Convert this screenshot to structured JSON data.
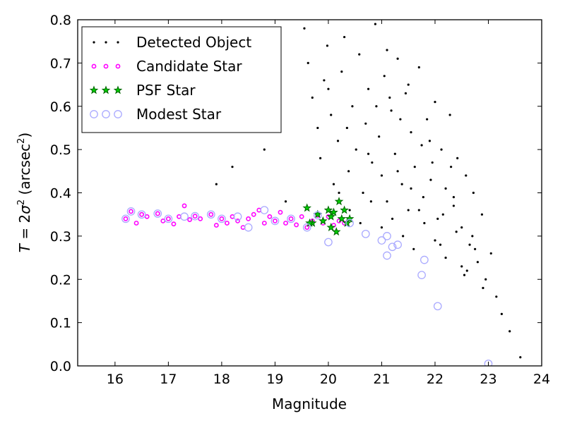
{
  "chart_data": {
    "type": "scatter",
    "xlabel": "Magnitude",
    "ylabel": "T = 2σ² (arcsec²)",
    "ylabel_parts": {
      "T": "T",
      "eq": " = 2",
      "sigma": "σ",
      "sup2": "2",
      "open": " (arcsec",
      "sup2b": "2",
      "close": ")"
    },
    "xlim": [
      15.3,
      24.0
    ],
    "ylim": [
      0.0,
      0.8
    ],
    "xticks": [
      "16",
      "17",
      "18",
      "19",
      "20",
      "21",
      "22",
      "23",
      "24"
    ],
    "yticks": [
      "0.0",
      "0.1",
      "0.2",
      "0.3",
      "0.4",
      "0.5",
      "0.6",
      "0.7",
      "0.8"
    ],
    "legend_placement": "upper-left",
    "colors": {
      "detected": "#000000",
      "candidate_edge": "#ff00ff",
      "psf_fill": "#00cc00",
      "psf_edge": "#006600",
      "modest_edge": "#aaaaff"
    },
    "series": [
      {
        "name": "Detected Object",
        "marker": "dot",
        "x": [
          19.55,
          19.62,
          19.7,
          19.8,
          19.85,
          19.92,
          19.98,
          20.05,
          20.1,
          20.18,
          20.25,
          20.3,
          20.38,
          20.45,
          20.52,
          20.58,
          20.65,
          20.7,
          20.75,
          20.82,
          20.88,
          20.95,
          21.0,
          21.05,
          21.1,
          21.18,
          21.25,
          21.3,
          21.38,
          21.45,
          21.5,
          21.55,
          21.62,
          21.7,
          21.78,
          21.85,
          21.92,
          22.0,
          22.05,
          22.12,
          22.2,
          22.28,
          22.35,
          22.42,
          22.5,
          22.58,
          22.65,
          22.72,
          22.8,
          22.88,
          22.95,
          23.05,
          23.15,
          23.25,
          23.4,
          23.6,
          21.2,
          21.4,
          21.6,
          21.8,
          22.0,
          22.2,
          22.4,
          22.6,
          20.4,
          20.6,
          20.8,
          21.0,
          20.2,
          21.3,
          21.7,
          22.1,
          22.5,
          22.9,
          20.9,
          21.1,
          21.5,
          21.9,
          22.3,
          22.7,
          19.2,
          18.8,
          18.2,
          17.9,
          20.0,
          20.35,
          20.75,
          21.15,
          21.55,
          21.95,
          22.35,
          22.75,
          21.35,
          21.75,
          22.15,
          22.55
        ],
        "y": [
          0.78,
          0.7,
          0.62,
          0.55,
          0.48,
          0.66,
          0.74,
          0.58,
          0.42,
          0.52,
          0.68,
          0.76,
          0.45,
          0.6,
          0.5,
          0.72,
          0.4,
          0.56,
          0.64,
          0.47,
          0.79,
          0.53,
          0.44,
          0.67,
          0.38,
          0.59,
          0.49,
          0.71,
          0.42,
          0.63,
          0.36,
          0.54,
          0.46,
          0.69,
          0.39,
          0.57,
          0.43,
          0.61,
          0.34,
          0.5,
          0.41,
          0.58,
          0.37,
          0.48,
          0.32,
          0.44,
          0.28,
          0.4,
          0.24,
          0.35,
          0.2,
          0.26,
          0.16,
          0.12,
          0.08,
          0.02,
          0.34,
          0.3,
          0.27,
          0.33,
          0.29,
          0.25,
          0.31,
          0.22,
          0.36,
          0.33,
          0.38,
          0.32,
          0.4,
          0.45,
          0.36,
          0.28,
          0.23,
          0.18,
          0.6,
          0.73,
          0.65,
          0.52,
          0.46,
          0.3,
          0.38,
          0.5,
          0.46,
          0.42,
          0.64,
          0.55,
          0.49,
          0.62,
          0.41,
          0.47,
          0.39,
          0.27,
          0.57,
          0.51,
          0.35,
          0.21
        ]
      },
      {
        "name": "Candidate Star",
        "marker": "small-circle",
        "x": [
          16.2,
          16.3,
          16.4,
          16.5,
          16.6,
          16.8,
          16.9,
          17.0,
          17.1,
          17.2,
          17.3,
          17.4,
          17.5,
          17.6,
          17.8,
          17.9,
          18.0,
          18.1,
          18.2,
          18.3,
          18.4,
          18.5,
          18.6,
          18.7,
          18.8,
          18.9,
          19.0,
          19.1,
          19.2,
          19.3,
          19.4,
          19.5,
          19.6,
          19.7,
          19.8,
          19.9,
          20.0,
          20.1,
          20.2,
          20.3
        ],
        "y": [
          0.34,
          0.357,
          0.33,
          0.35,
          0.345,
          0.352,
          0.335,
          0.34,
          0.328,
          0.345,
          0.37,
          0.338,
          0.346,
          0.34,
          0.35,
          0.325,
          0.34,
          0.33,
          0.345,
          0.335,
          0.32,
          0.34,
          0.35,
          0.36,
          0.33,
          0.345,
          0.335,
          0.355,
          0.33,
          0.34,
          0.326,
          0.345,
          0.32,
          0.335,
          0.348,
          0.33,
          0.345,
          0.325,
          0.335,
          0.33
        ]
      },
      {
        "name": "PSF Star",
        "marker": "star",
        "x": [
          19.6,
          19.7,
          19.8,
          19.9,
          20.0,
          20.05,
          20.1,
          20.15,
          20.2,
          20.25,
          20.3,
          20.35,
          20.4,
          19.65,
          20.05
        ],
        "y": [
          0.365,
          0.33,
          0.35,
          0.335,
          0.36,
          0.32,
          0.355,
          0.31,
          0.38,
          0.34,
          0.36,
          0.33,
          0.34,
          0.33,
          0.345
        ]
      },
      {
        "name": "Modest Star",
        "marker": "open-circle",
        "x": [
          16.2,
          16.3,
          16.5,
          16.8,
          17.0,
          17.3,
          17.5,
          17.8,
          18.0,
          18.3,
          18.5,
          18.8,
          19.0,
          19.3,
          19.6,
          19.8,
          20.0,
          20.4,
          20.7,
          21.0,
          21.1,
          21.2,
          21.3,
          21.1,
          21.8,
          21.75,
          22.05,
          23.0
        ],
        "y": [
          0.34,
          0.357,
          0.35,
          0.352,
          0.34,
          0.345,
          0.346,
          0.35,
          0.34,
          0.345,
          0.32,
          0.36,
          0.335,
          0.34,
          0.32,
          0.348,
          0.286,
          0.33,
          0.305,
          0.29,
          0.3,
          0.275,
          0.28,
          0.255,
          0.245,
          0.21,
          0.138,
          0.005
        ]
      }
    ]
  }
}
